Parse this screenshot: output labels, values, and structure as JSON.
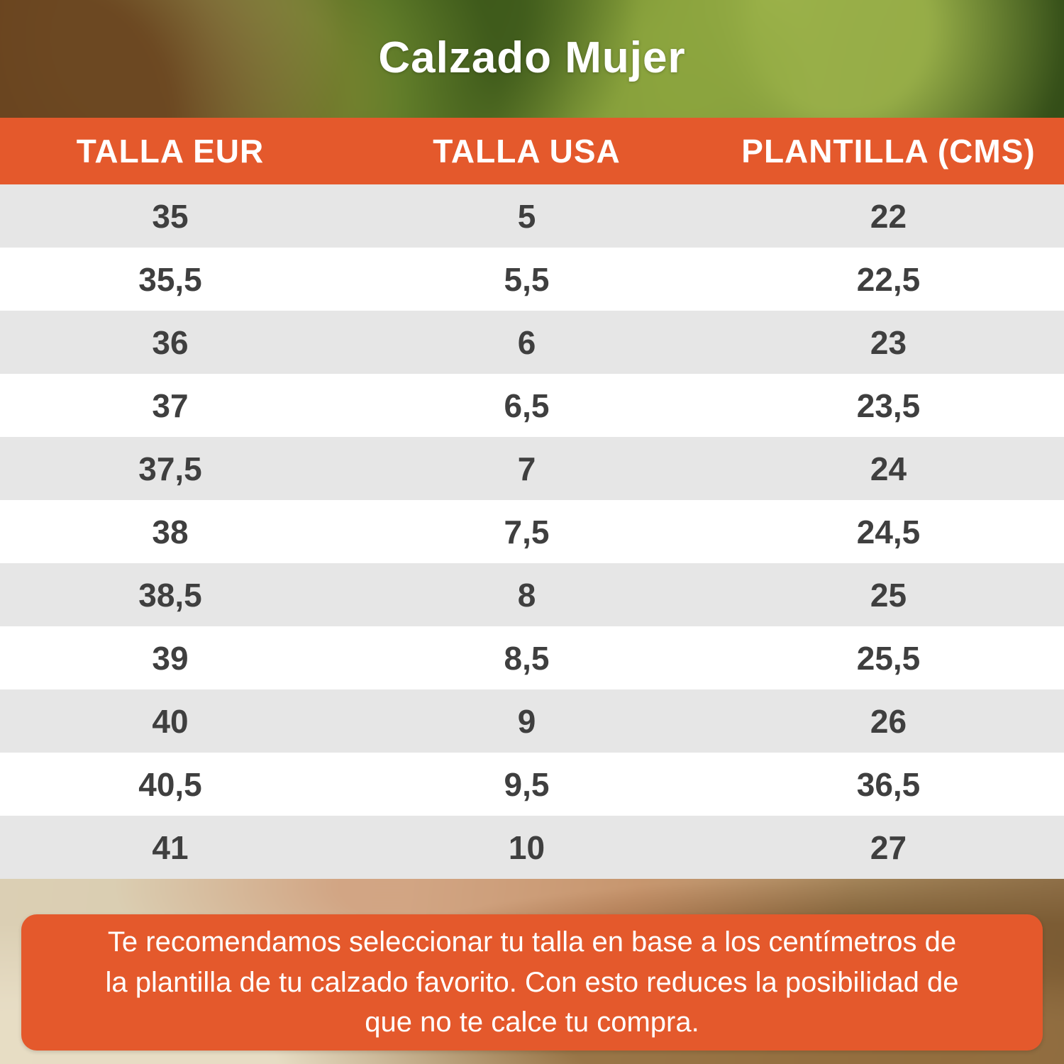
{
  "title": "Calzado Mujer",
  "chart_data": {
    "type": "table",
    "title": "Calzado Mujer",
    "columns": [
      "TALLA EUR",
      "TALLA USA",
      "PLANTILLA (CMS)"
    ],
    "rows": [
      [
        "35",
        "5",
        "22"
      ],
      [
        "35,5",
        "5,5",
        "22,5"
      ],
      [
        "36",
        "6",
        "23"
      ],
      [
        "37",
        "6,5",
        "23,5"
      ],
      [
        "37,5",
        "7",
        "24"
      ],
      [
        "38",
        "7,5",
        "24,5"
      ],
      [
        "38,5",
        "8",
        "25"
      ],
      [
        "39",
        "8,5",
        "25,5"
      ],
      [
        "40",
        "9",
        "26"
      ],
      [
        "40,5",
        "9,5",
        "36,5"
      ],
      [
        "41",
        "10",
        "27"
      ]
    ]
  },
  "footer": {
    "note": "Te recomendamos seleccionar tu talla en base a los centímetros de la plantilla de tu calzado favorito. Con esto reduces la posibilidad de que no te calce tu compra."
  },
  "colors": {
    "accent_orange": "#e4592c",
    "row_gray": "#e6e6e6",
    "row_white": "#ffffff",
    "text_dark": "#3f3f3f",
    "text_white": "#ffffff"
  }
}
